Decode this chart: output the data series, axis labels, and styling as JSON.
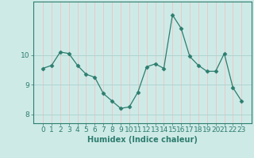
{
  "x": [
    0,
    1,
    2,
    3,
    4,
    5,
    6,
    7,
    8,
    9,
    10,
    11,
    12,
    13,
    14,
    15,
    16,
    17,
    18,
    19,
    20,
    21,
    22,
    23
  ],
  "y": [
    9.55,
    9.65,
    10.1,
    10.05,
    9.65,
    9.35,
    9.25,
    8.7,
    8.45,
    8.2,
    8.25,
    8.75,
    9.6,
    9.7,
    9.55,
    11.35,
    10.9,
    9.95,
    9.65,
    9.45,
    9.45,
    10.05,
    8.9,
    8.45
  ],
  "line_color": "#2d7d6e",
  "marker": "D",
  "marker_size": 2.5,
  "bg_color": "#ceeae7",
  "grid_color_h": "#b0d4d0",
  "grid_color_v": "#e8c8c8",
  "axis_color": "#2d7d6e",
  "xlabel": "Humidex (Indice chaleur)",
  "ylim": [
    7.7,
    11.8
  ],
  "yticks": [
    8,
    9,
    10
  ],
  "xticks": [
    0,
    1,
    2,
    3,
    4,
    5,
    6,
    7,
    8,
    9,
    10,
    11,
    12,
    13,
    14,
    15,
    16,
    17,
    18,
    19,
    20,
    21,
    22,
    23
  ],
  "xlabel_fontsize": 7,
  "tick_fontsize": 6.5
}
